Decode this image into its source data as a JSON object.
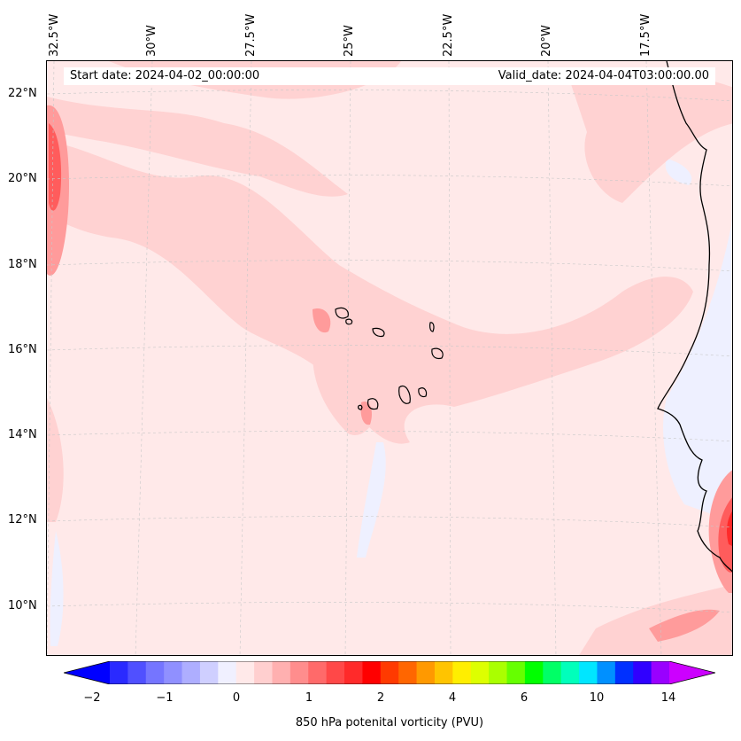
{
  "info_box": {
    "start_date": "Start date: 2024-04-02_00:00:00",
    "valid_date": "Valid_date: 2024-04-04T03:00:00.00"
  },
  "longitude_labels": [
    "32.5°W",
    "30°W",
    "27.5°W",
    "25°W",
    "22.5°W",
    "20°W",
    "17.5°W"
  ],
  "latitude_labels": [
    "22°N",
    "20°N",
    "18°N",
    "16°N",
    "14°N",
    "12°N",
    "10°N"
  ],
  "colorbar": {
    "label": "850 hPa potenital vorticity (PVU)",
    "tick_labels": [
      "−2",
      "−1",
      "0",
      "1",
      "2",
      "4",
      "6",
      "10",
      "14"
    ],
    "colors": [
      "#0000ff",
      "#2a2aff",
      "#5050ff",
      "#7575ff",
      "#9090ff",
      "#aeaeff",
      "#cfcfff",
      "#f0f0ff",
      "#ffe9e9",
      "#ffcfcf",
      "#ffb0b0",
      "#ff8d8d",
      "#ff6a6a",
      "#ff4848",
      "#ff2a2a",
      "#ff0000",
      "#ff3a00",
      "#ff6600",
      "#ff9900",
      "#ffc400",
      "#ffee00",
      "#ddff00",
      "#aaff00",
      "#66ff00",
      "#00ff00",
      "#00ff66",
      "#00ffbb",
      "#00e6ff",
      "#0090ff",
      "#0030ff",
      "#3000ff",
      "#9900ff",
      "#cc00ff"
    ]
  },
  "map_colors": {
    "background": "#ffe9e9",
    "light": "#ffd2d2",
    "medium": "#ff9b9b",
    "strong": "#ff5c5c",
    "intense": "#ff2a2a",
    "negative": "#eef0ff",
    "coast": "#000000"
  }
}
